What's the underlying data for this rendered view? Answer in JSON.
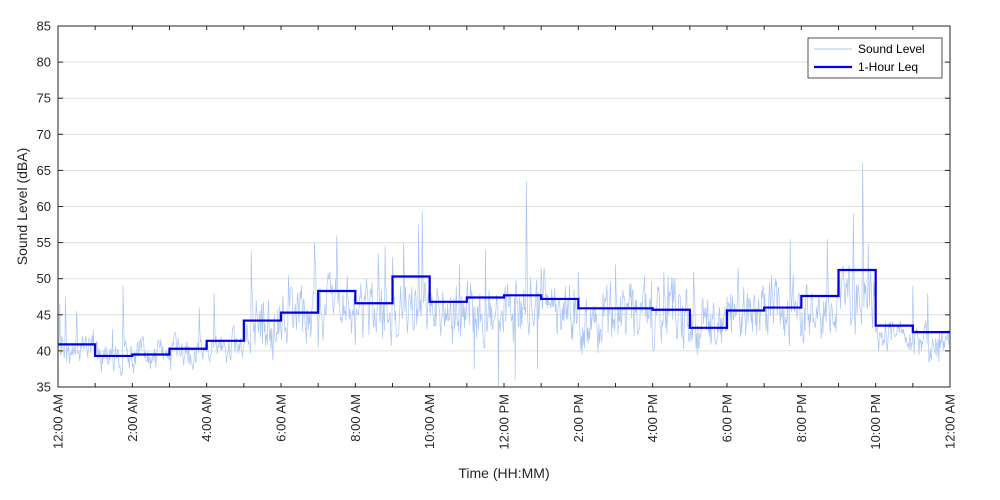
{
  "chart_data": {
    "type": "line",
    "title": "",
    "xlabel": "Time (HH:MM)",
    "ylabel": "Sound Level (dBA)",
    "ylim": [
      35,
      85
    ],
    "yticks": [
      35,
      40,
      45,
      50,
      55,
      60,
      65,
      70,
      75,
      80,
      85
    ],
    "xlim_hours": [
      0,
      24
    ],
    "xtick_labels": [
      "12:00 AM",
      "2:00 AM",
      "4:00 AM",
      "6:00 AM",
      "8:00 AM",
      "10:00 AM",
      "12:00 PM",
      "2:00 PM",
      "4:00 PM",
      "6:00 PM",
      "8:00 PM",
      "10:00 PM",
      "12:00 AM"
    ],
    "grid": true,
    "legend_position": "top-right",
    "series": [
      {
        "name": "Sound Level",
        "style": "thin-light",
        "color": "#aac4f5",
        "hourly_baseline": [
          40.5,
          38.8,
          39.0,
          39.8,
          40.5,
          43.5,
          44.5,
          46.0,
          45.0,
          46.5,
          45.5,
          45.0,
          45.5,
          45.0,
          44.5,
          44.8,
          44.8,
          43.0,
          44.5,
          45.0,
          45.5,
          47.0,
          42.0,
          41.0
        ],
        "peaks": [
          {
            "hour": 0.2,
            "value": 47.5
          },
          {
            "hour": 0.5,
            "value": 45.5
          },
          {
            "hour": 1.75,
            "value": 49.0
          },
          {
            "hour": 3.8,
            "value": 46.0
          },
          {
            "hour": 4.2,
            "value": 48.0
          },
          {
            "hour": 5.2,
            "value": 53.8
          },
          {
            "hour": 6.2,
            "value": 50.5
          },
          {
            "hour": 6.9,
            "value": 55.0
          },
          {
            "hour": 7.5,
            "value": 56.0
          },
          {
            "hour": 8.3,
            "value": 50.0
          },
          {
            "hour": 8.8,
            "value": 54.5
          },
          {
            "hour": 9.0,
            "value": 53.0
          },
          {
            "hour": 9.3,
            "value": 55.0
          },
          {
            "hour": 9.7,
            "value": 57.5
          },
          {
            "hour": 9.8,
            "value": 59.3
          },
          {
            "hour": 10.8,
            "value": 52.0
          },
          {
            "hour": 11.5,
            "value": 54.0
          },
          {
            "hour": 12.6,
            "value": 63.5
          },
          {
            "hour": 13.0,
            "value": 51.5
          },
          {
            "hour": 14.0,
            "value": 51.0
          },
          {
            "hour": 15.0,
            "value": 52.0
          },
          {
            "hour": 16.3,
            "value": 51.0
          },
          {
            "hour": 17.1,
            "value": 51.0
          },
          {
            "hour": 18.3,
            "value": 51.5
          },
          {
            "hour": 19.2,
            "value": 50.5
          },
          {
            "hour": 19.7,
            "value": 55.5
          },
          {
            "hour": 20.7,
            "value": 55.5
          },
          {
            "hour": 21.4,
            "value": 59.0
          },
          {
            "hour": 21.65,
            "value": 66.0
          },
          {
            "hour": 21.8,
            "value": 54.8
          },
          {
            "hour": 23.0,
            "value": 49.0
          },
          {
            "hour": 23.4,
            "value": 48.0
          }
        ],
        "dips": [
          {
            "hour": 1.5,
            "value": 37.2
          },
          {
            "hour": 5.5,
            "value": 41.0
          },
          {
            "hour": 7.0,
            "value": 40.5
          },
          {
            "hour": 11.2,
            "value": 37.5
          },
          {
            "hour": 11.85,
            "value": 34.9
          },
          {
            "hour": 12.3,
            "value": 36.0
          },
          {
            "hour": 12.9,
            "value": 37.5
          },
          {
            "hour": 14.1,
            "value": 39.5
          },
          {
            "hour": 22.2,
            "value": 41.0
          },
          {
            "hour": 23.7,
            "value": 38.5
          }
        ]
      },
      {
        "name": "1-Hour Leq",
        "style": "step",
        "color": "#0000e0",
        "hours": [
          0,
          1,
          2,
          3,
          4,
          5,
          6,
          7,
          8,
          9,
          10,
          11,
          12,
          13,
          14,
          15,
          16,
          17,
          18,
          19,
          20,
          21,
          22,
          23
        ],
        "values": [
          40.9,
          39.3,
          39.5,
          40.3,
          41.4,
          44.2,
          45.3,
          48.3,
          46.6,
          50.3,
          46.8,
          47.4,
          47.7,
          47.2,
          45.9,
          45.9,
          45.7,
          43.2,
          45.6,
          46.0,
          47.6,
          51.2,
          43.5,
          42.6
        ]
      }
    ]
  }
}
